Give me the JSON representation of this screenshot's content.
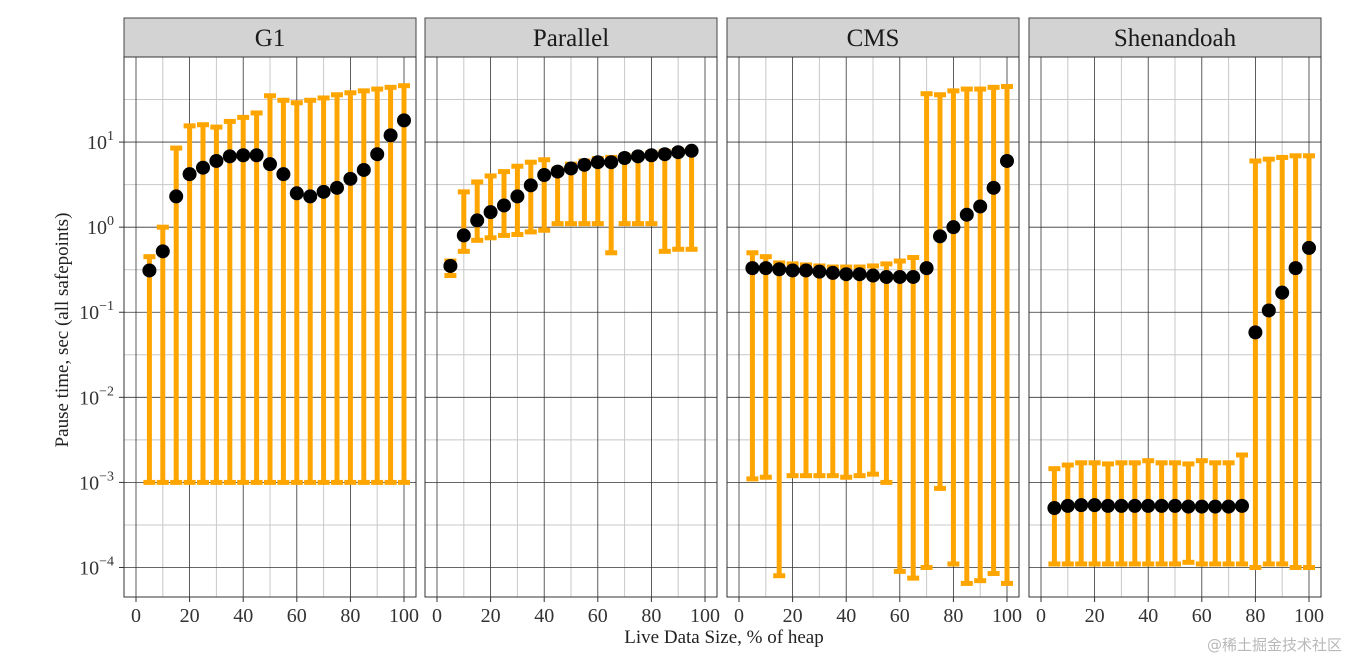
{
  "chart_data": {
    "type": "scatter",
    "subtype": "faceted dot plot with error bars (min/max range)",
    "xlabel": "Live Data Size, % of heap",
    "ylabel": "Pause time, sec (all safepoints)",
    "xlim": [
      0,
      100
    ],
    "xticks": [
      0,
      20,
      40,
      60,
      80,
      100
    ],
    "y_scale": "log10",
    "ylim": [
      4.5e-05,
      100
    ],
    "yticks": [
      {
        "value": 0.0001,
        "label": "10",
        "exp": "−4"
      },
      {
        "value": 0.001,
        "label": "10",
        "exp": "−3"
      },
      {
        "value": 0.01,
        "label": "10",
        "exp": "−2"
      },
      {
        "value": 0.1,
        "label": "10",
        "exp": "−1"
      },
      {
        "value": 1,
        "label": "10",
        "exp": "0"
      },
      {
        "value": 10,
        "label": "10",
        "exp": "1"
      }
    ],
    "grid": true,
    "colors": {
      "point": "#000000",
      "errorbar": "#FFA500",
      "strip": "#D3D3D3",
      "panel_border": "#333333",
      "grid_major": "#333333",
      "grid_minor": "#c8c8c8"
    },
    "panels": [
      {
        "name": "G1",
        "points": [
          {
            "x": 5,
            "y": 0.31,
            "lo": 0.001,
            "hi": 0.45
          },
          {
            "x": 10,
            "y": 0.52,
            "lo": 0.001,
            "hi": 1.0
          },
          {
            "x": 15,
            "y": 2.3,
            "lo": 0.001,
            "hi": 8.5
          },
          {
            "x": 20,
            "y": 4.2,
            "lo": 0.001,
            "hi": 15.5
          },
          {
            "x": 25,
            "y": 5.0,
            "lo": 0.001,
            "hi": 16.0
          },
          {
            "x": 30,
            "y": 6.0,
            "lo": 0.001,
            "hi": 15.0
          },
          {
            "x": 35,
            "y": 6.8,
            "lo": 0.001,
            "hi": 17.5
          },
          {
            "x": 40,
            "y": 7.0,
            "lo": 0.001,
            "hi": 19.5
          },
          {
            "x": 45,
            "y": 7.0,
            "lo": 0.001,
            "hi": 22.0
          },
          {
            "x": 50,
            "y": 5.5,
            "lo": 0.001,
            "hi": 35.0
          },
          {
            "x": 55,
            "y": 4.2,
            "lo": 0.001,
            "hi": 31.0
          },
          {
            "x": 60,
            "y": 2.5,
            "lo": 0.001,
            "hi": 29.0
          },
          {
            "x": 65,
            "y": 2.3,
            "lo": 0.001,
            "hi": 31.0
          },
          {
            "x": 70,
            "y": 2.6,
            "lo": 0.001,
            "hi": 33.0
          },
          {
            "x": 75,
            "y": 2.9,
            "lo": 0.001,
            "hi": 36.0
          },
          {
            "x": 80,
            "y": 3.7,
            "lo": 0.001,
            "hi": 38.0
          },
          {
            "x": 85,
            "y": 4.7,
            "lo": 0.001,
            "hi": 40.0
          },
          {
            "x": 90,
            "y": 7.2,
            "lo": 0.001,
            "hi": 42.0
          },
          {
            "x": 95,
            "y": 12.0,
            "lo": 0.001,
            "hi": 44.0
          },
          {
            "x": 100,
            "y": 18.0,
            "lo": 0.001,
            "hi": 46.0
          }
        ]
      },
      {
        "name": "Parallel",
        "points": [
          {
            "x": 5,
            "y": 0.35,
            "lo": 0.27,
            "hi": 0.4
          },
          {
            "x": 10,
            "y": 0.8,
            "lo": 0.52,
            "hi": 2.6
          },
          {
            "x": 15,
            "y": 1.2,
            "lo": 0.7,
            "hi": 3.4
          },
          {
            "x": 20,
            "y": 1.5,
            "lo": 0.75,
            "hi": 4.0
          },
          {
            "x": 25,
            "y": 1.8,
            "lo": 0.8,
            "hi": 4.5
          },
          {
            "x": 30,
            "y": 2.3,
            "lo": 0.82,
            "hi": 5.2
          },
          {
            "x": 35,
            "y": 3.1,
            "lo": 0.88,
            "hi": 5.8
          },
          {
            "x": 40,
            "y": 4.1,
            "lo": 0.92,
            "hi": 6.2
          },
          {
            "x": 45,
            "y": 4.5,
            "lo": 1.1,
            "hi": 4.8
          },
          {
            "x": 50,
            "y": 4.9,
            "lo": 1.1,
            "hi": 5.5
          },
          {
            "x": 55,
            "y": 5.4,
            "lo": 1.1,
            "hi": 6.0
          },
          {
            "x": 60,
            "y": 5.8,
            "lo": 1.1,
            "hi": 6.4
          },
          {
            "x": 65,
            "y": 5.8,
            "lo": 0.5,
            "hi": 6.6
          },
          {
            "x": 70,
            "y": 6.5,
            "lo": 1.1,
            "hi": 7.0
          },
          {
            "x": 75,
            "y": 6.8,
            "lo": 1.1,
            "hi": 7.2
          },
          {
            "x": 80,
            "y": 7.0,
            "lo": 1.1,
            "hi": 7.5
          },
          {
            "x": 85,
            "y": 7.2,
            "lo": 0.52,
            "hi": 7.8
          },
          {
            "x": 90,
            "y": 7.6,
            "lo": 0.55,
            "hi": 8.0
          },
          {
            "x": 95,
            "y": 7.9,
            "lo": 0.55,
            "hi": 8.3
          }
        ]
      },
      {
        "name": "CMS",
        "points": [
          {
            "x": 5,
            "y": 0.33,
            "lo": 0.0011,
            "hi": 0.5
          },
          {
            "x": 10,
            "y": 0.33,
            "lo": 0.00115,
            "hi": 0.45
          },
          {
            "x": 15,
            "y": 0.32,
            "lo": 8e-05,
            "hi": 0.38
          },
          {
            "x": 20,
            "y": 0.31,
            "lo": 0.0012,
            "hi": 0.37
          },
          {
            "x": 25,
            "y": 0.31,
            "lo": 0.0012,
            "hi": 0.36
          },
          {
            "x": 30,
            "y": 0.3,
            "lo": 0.0012,
            "hi": 0.35
          },
          {
            "x": 35,
            "y": 0.29,
            "lo": 0.0012,
            "hi": 0.34
          },
          {
            "x": 40,
            "y": 0.28,
            "lo": 0.00115,
            "hi": 0.34
          },
          {
            "x": 45,
            "y": 0.28,
            "lo": 0.0012,
            "hi": 0.34
          },
          {
            "x": 50,
            "y": 0.27,
            "lo": 0.00125,
            "hi": 0.35
          },
          {
            "x": 55,
            "y": 0.26,
            "lo": 0.001,
            "hi": 0.37
          },
          {
            "x": 60,
            "y": 0.26,
            "lo": 9e-05,
            "hi": 0.4
          },
          {
            "x": 65,
            "y": 0.26,
            "lo": 7.5e-05,
            "hi": 0.44
          },
          {
            "x": 70,
            "y": 0.33,
            "lo": 0.0001,
            "hi": 37.0
          },
          {
            "x": 75,
            "y": 0.78,
            "lo": 0.00085,
            "hi": 36.0
          },
          {
            "x": 80,
            "y": 1.0,
            "lo": 0.00011,
            "hi": 40.0
          },
          {
            "x": 85,
            "y": 1.4,
            "lo": 6.5e-05,
            "hi": 42.0
          },
          {
            "x": 90,
            "y": 1.75,
            "lo": 7e-05,
            "hi": 42.0
          },
          {
            "x": 95,
            "y": 2.9,
            "lo": 8.5e-05,
            "hi": 44.0
          },
          {
            "x": 100,
            "y": 6.0,
            "lo": 6.5e-05,
            "hi": 45.0
          }
        ]
      },
      {
        "name": "Shenandoah",
        "points": [
          {
            "x": 5,
            "y": 0.0005,
            "lo": 0.00011,
            "hi": 0.00145
          },
          {
            "x": 10,
            "y": 0.00053,
            "lo": 0.00011,
            "hi": 0.0016
          },
          {
            "x": 15,
            "y": 0.00054,
            "lo": 0.00011,
            "hi": 0.0017
          },
          {
            "x": 20,
            "y": 0.00054,
            "lo": 0.00011,
            "hi": 0.0017
          },
          {
            "x": 25,
            "y": 0.00053,
            "lo": 0.00011,
            "hi": 0.00165
          },
          {
            "x": 30,
            "y": 0.00053,
            "lo": 0.00011,
            "hi": 0.0017
          },
          {
            "x": 35,
            "y": 0.00053,
            "lo": 0.00011,
            "hi": 0.0017
          },
          {
            "x": 40,
            "y": 0.00053,
            "lo": 0.00011,
            "hi": 0.0018
          },
          {
            "x": 45,
            "y": 0.00053,
            "lo": 0.00011,
            "hi": 0.0017
          },
          {
            "x": 50,
            "y": 0.00053,
            "lo": 0.00011,
            "hi": 0.0017
          },
          {
            "x": 55,
            "y": 0.00052,
            "lo": 0.000115,
            "hi": 0.00165
          },
          {
            "x": 60,
            "y": 0.00052,
            "lo": 0.00011,
            "hi": 0.0018
          },
          {
            "x": 65,
            "y": 0.00052,
            "lo": 0.00011,
            "hi": 0.0017
          },
          {
            "x": 70,
            "y": 0.00052,
            "lo": 0.00011,
            "hi": 0.0017
          },
          {
            "x": 75,
            "y": 0.00053,
            "lo": 0.00011,
            "hi": 0.0021
          },
          {
            "x": 80,
            "y": 0.058,
            "lo": 0.0001,
            "hi": 6.0
          },
          {
            "x": 85,
            "y": 0.105,
            "lo": 0.00011,
            "hi": 6.3
          },
          {
            "x": 90,
            "y": 0.17,
            "lo": 0.00011,
            "hi": 6.6
          },
          {
            "x": 95,
            "y": 0.33,
            "lo": 0.0001,
            "hi": 6.9
          },
          {
            "x": 100,
            "y": 0.57,
            "lo": 0.0001,
            "hi": 6.9
          }
        ]
      }
    ]
  },
  "watermark": "@稀土掘金技术社区"
}
